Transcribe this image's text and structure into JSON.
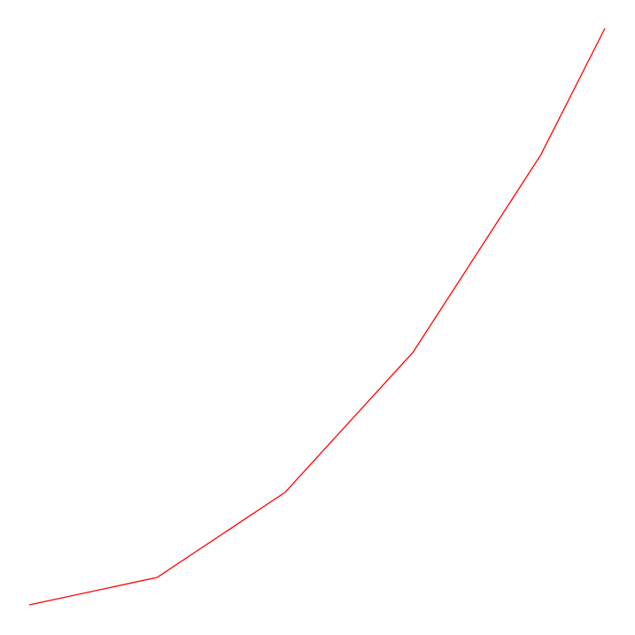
{
  "chart_data": {
    "type": "line",
    "title": "",
    "xlabel": "",
    "ylabel": "",
    "axes_visible": false,
    "grid": false,
    "legend": "none",
    "x": [
      0,
      1,
      2,
      3,
      4,
      4.5
    ],
    "series": [
      {
        "values": [
          0,
          1,
          4.1,
          9.2,
          16.4,
          21
        ],
        "color": "#ff0000"
      }
    ],
    "xlim": [
      0,
      4.5
    ],
    "ylim": [
      0,
      21
    ]
  }
}
